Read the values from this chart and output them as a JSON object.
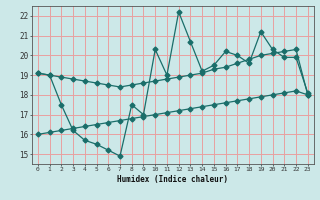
{
  "xlabel": "Humidex (Indice chaleur)",
  "xlim": [
    -0.5,
    23.5
  ],
  "ylim": [
    14.5,
    22.5
  ],
  "xticks": [
    0,
    1,
    2,
    3,
    4,
    5,
    6,
    7,
    8,
    9,
    10,
    11,
    12,
    13,
    14,
    15,
    16,
    17,
    18,
    19,
    20,
    21,
    22,
    23
  ],
  "yticks": [
    15,
    16,
    17,
    18,
    19,
    20,
    21,
    22
  ],
  "bg_color": "#cce8e8",
  "grid_color": "#e8a0a0",
  "line_color": "#1a6e6a",
  "line1_x": [
    0,
    1,
    2,
    3,
    4,
    5,
    6,
    7,
    8,
    9,
    10,
    11,
    12,
    13,
    14,
    15,
    16,
    17,
    18,
    19,
    20,
    21,
    22,
    23
  ],
  "line1_y": [
    19.1,
    19.0,
    18.9,
    18.8,
    18.7,
    18.6,
    18.5,
    18.4,
    18.5,
    18.6,
    18.7,
    18.8,
    18.9,
    19.0,
    19.1,
    19.3,
    19.4,
    19.6,
    19.8,
    20.0,
    20.1,
    20.2,
    20.3,
    18.0
  ],
  "line2_x": [
    0,
    1,
    2,
    3,
    4,
    5,
    6,
    7,
    8,
    9,
    10,
    11,
    12,
    13,
    14,
    15,
    16,
    17,
    18,
    19,
    20,
    21,
    22,
    23
  ],
  "line2_y": [
    16.0,
    16.1,
    16.2,
    16.3,
    16.4,
    16.5,
    16.6,
    16.7,
    16.8,
    16.9,
    17.0,
    17.1,
    17.2,
    17.3,
    17.4,
    17.5,
    17.6,
    17.7,
    17.8,
    17.9,
    18.0,
    18.1,
    18.2,
    18.0
  ],
  "line3_x": [
    0,
    1,
    2,
    3,
    4,
    5,
    6,
    7,
    8,
    9,
    10,
    11,
    12,
    13,
    14,
    15,
    16,
    17,
    18,
    19,
    20,
    21,
    22,
    23
  ],
  "line3_y": [
    19.1,
    19.0,
    17.5,
    16.2,
    15.7,
    15.5,
    15.2,
    14.9,
    17.5,
    17.0,
    20.3,
    19.0,
    22.2,
    20.7,
    19.2,
    19.5,
    20.2,
    20.0,
    19.6,
    21.2,
    20.3,
    19.9,
    19.9,
    18.1
  ]
}
